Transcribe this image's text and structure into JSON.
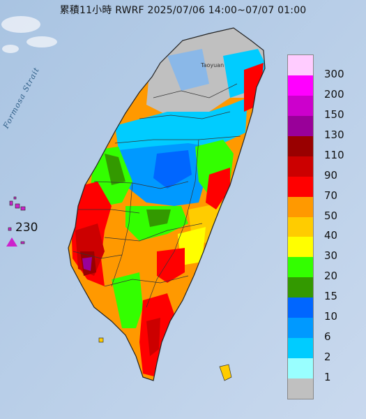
{
  "title": "累積11小時 RWRF 2025/07/06 14:00~07/07 01:00",
  "map_labels": {
    "strait": "Formosa Strait",
    "city": "Taoyuan"
  },
  "max_marker": {
    "value": "230",
    "color": "#cc22cc"
  },
  "legend": [
    {
      "label": "300",
      "color": "#ffccff"
    },
    {
      "label": "200",
      "color": "#ff00ff"
    },
    {
      "label": "150",
      "color": "#cc00cc"
    },
    {
      "label": "130",
      "color": "#990099"
    },
    {
      "label": "110",
      "color": "#990000"
    },
    {
      "label": "90",
      "color": "#cc0000"
    },
    {
      "label": "70",
      "color": "#ff0000"
    },
    {
      "label": "50",
      "color": "#ff9900"
    },
    {
      "label": "40",
      "color": "#ffcc00"
    },
    {
      "label": "30",
      "color": "#ffff00"
    },
    {
      "label": "20",
      "color": "#33ff00"
    },
    {
      "label": "15",
      "color": "#339900"
    },
    {
      "label": "10",
      "color": "#0066ff"
    },
    {
      "label": "6",
      "color": "#0099ff"
    },
    {
      "label": "2",
      "color": "#00ccff"
    },
    {
      "label": "1",
      "color": "#99ffff"
    },
    {
      "label": "",
      "color": "#c0c0c0"
    }
  ]
}
